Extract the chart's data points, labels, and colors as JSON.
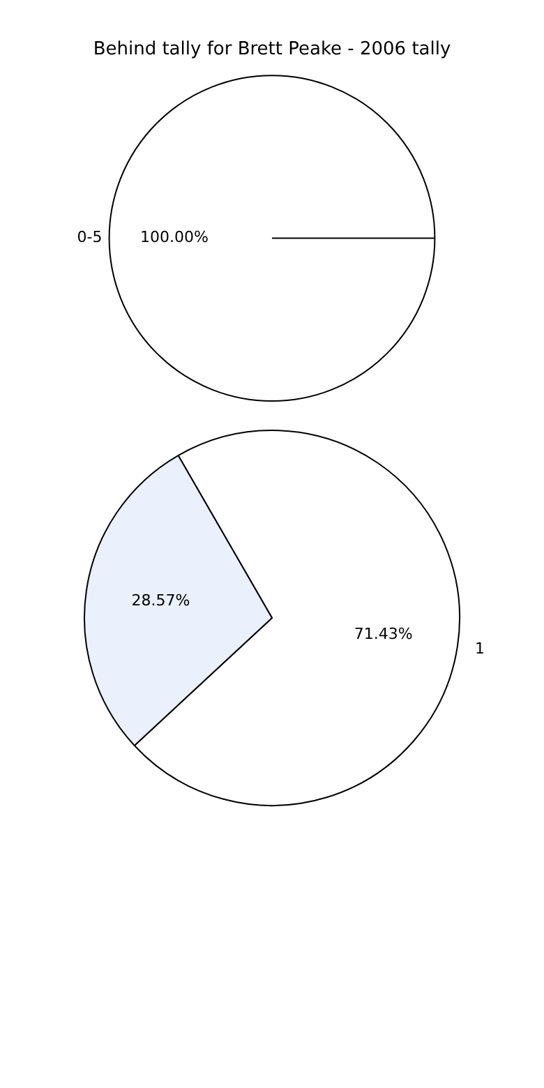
{
  "chart_data": [
    {
      "type": "pie",
      "title": "Behind tally for Brett Peake - 2006 tally",
      "categories": [
        "0-5"
      ],
      "values": [
        100
      ],
      "colors": [
        "#ffffff"
      ],
      "value_labels": [
        "100.00%"
      ],
      "legend": false
    },
    {
      "type": "pie",
      "categories": [
        "1",
        null
      ],
      "values": [
        71.43,
        28.57
      ],
      "colors": [
        "#ffffff",
        "#eaf0fc"
      ],
      "value_labels": [
        "71.43%",
        "28.57%"
      ],
      "legend": false
    }
  ]
}
